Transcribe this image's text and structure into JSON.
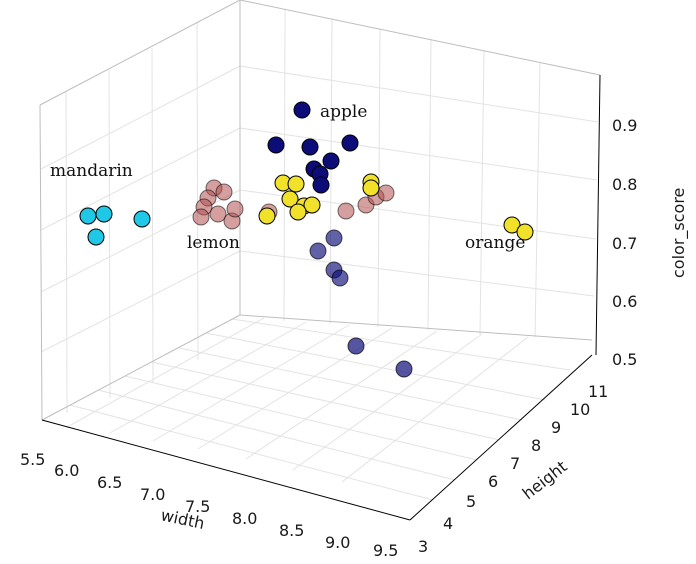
{
  "chart_data": {
    "type": "scatter3d",
    "axes": {
      "x": {
        "label": "width",
        "range": [
          5.5,
          9.5
        ],
        "ticks": [
          "5.5",
          "6.0",
          "6.5",
          "7.0",
          "7.5",
          "8.0",
          "8.5",
          "9.0",
          "9.5"
        ]
      },
      "y": {
        "label": "height",
        "range": [
          3,
          11
        ],
        "ticks": [
          "3",
          "4",
          "5",
          "6",
          "7",
          "8",
          "9",
          "10",
          "11"
        ]
      },
      "z": {
        "label": "color_score",
        "range": [
          0.5,
          0.95
        ],
        "ticks": [
          "0.5",
          "0.6",
          "0.7",
          "0.8",
          "0.9"
        ]
      }
    },
    "grid": true,
    "clusters": [
      {
        "label": "apple",
        "color": "#0d0d7a"
      },
      {
        "label": "mandarin",
        "color": "#1ec8e6"
      },
      {
        "label": "lemon",
        "color": "#b25050"
      },
      {
        "label": "orange",
        "color": "#f2e12a"
      }
    ]
  }
}
